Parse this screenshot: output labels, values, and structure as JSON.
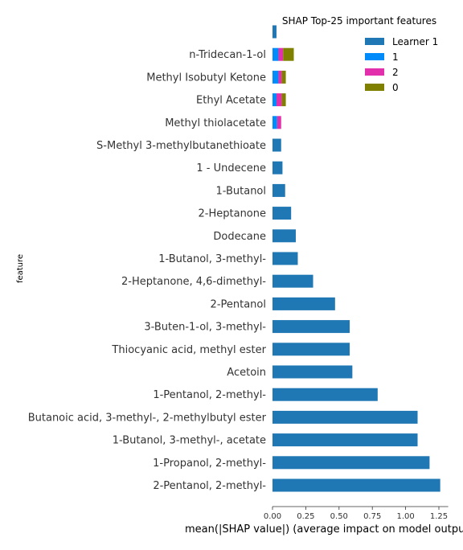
{
  "chart_data": {
    "type": "bar",
    "orientation": "horizontal",
    "stacked": true,
    "title": "SHAP Top-25 important features",
    "xlabel": "mean(|SHAP value|) (average impact on model output",
    "ylabel": "feature",
    "xlim": [
      0,
      1.32
    ],
    "xticks": [
      0.0,
      0.25,
      0.5,
      0.75,
      1.0,
      1.25
    ],
    "xtick_labels": [
      "0.00",
      "0.25",
      "0.50",
      "0.75",
      "1.00",
      "1.25"
    ],
    "grid": false,
    "legend_position": "top-right",
    "categories": [
      "",
      "n-Tridecan-1-ol",
      "Methyl Isobutyl Ketone",
      "Ethyl Acetate",
      "Methyl thiolacetate",
      "S-Methyl 3-methylbutanethioate",
      "1 - Undecene",
      "1-Butanol",
      "2-Heptanone",
      "Dodecane",
      "1-Butanol, 3-methyl-",
      "2-Heptanone, 4,6-dimethyl-",
      "2-Pentanol",
      "3-Buten-1-ol, 3-methyl-",
      "Thiocyanic acid, methyl ester",
      "Acetoin",
      "1-Pentanol, 2-methyl-",
      "Butanoic acid, 3-methyl-, 2-methylbutyl ester",
      "1-Butanol, 3-methyl-, acetate",
      "1-Propanol, 2-methyl-",
      "2-Pentanol, 2-methyl-"
    ],
    "series": [
      {
        "name": "Learner 1",
        "color": "#1f77b4",
        "values": [
          0.03,
          0,
          0,
          0,
          0,
          0.065,
          0.075,
          0.095,
          0.14,
          0.175,
          0.19,
          0.305,
          0.47,
          0.58,
          0.58,
          0.6,
          0.79,
          1.09,
          1.09,
          1.18,
          1.26
        ]
      },
      {
        "name": "1",
        "color": "#008bfb",
        "values": [
          0,
          0.045,
          0.045,
          0.03,
          0.035,
          0,
          0,
          0,
          0,
          0,
          0,
          0,
          0,
          0,
          0,
          0,
          0,
          0,
          0,
          0,
          0
        ]
      },
      {
        "name": "2",
        "color": "#e22fab",
        "values": [
          0,
          0.035,
          0.025,
          0.04,
          0.03,
          0,
          0,
          0,
          0,
          0,
          0,
          0,
          0,
          0,
          0,
          0,
          0,
          0,
          0,
          0,
          0
        ]
      },
      {
        "name": "0",
        "color": "#808000",
        "values": [
          0,
          0.08,
          0.03,
          0.03,
          0,
          0,
          0,
          0,
          0,
          0,
          0,
          0,
          0,
          0,
          0,
          0,
          0,
          0,
          0,
          0,
          0
        ]
      }
    ]
  }
}
